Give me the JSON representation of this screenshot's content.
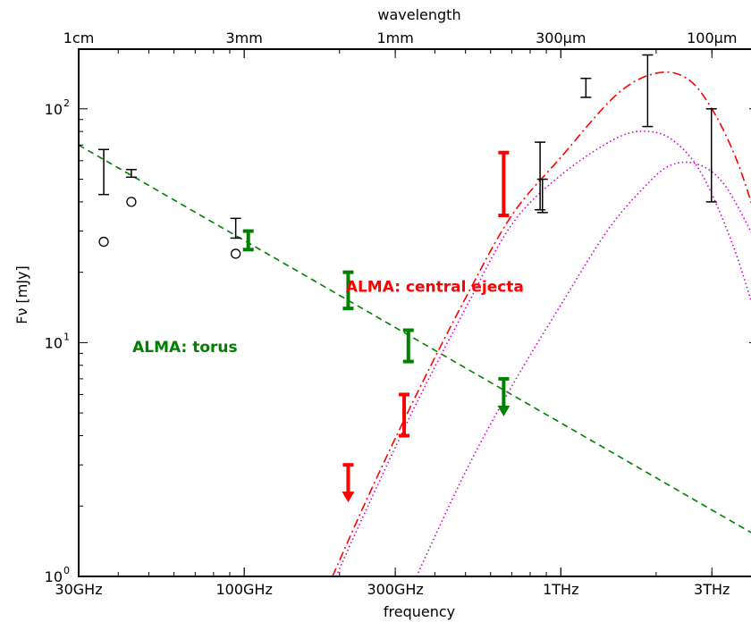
{
  "chart_data": {
    "type": "scatter",
    "xscale": "log",
    "yscale": "log",
    "xlim_GHz": [
      30,
      4200
    ],
    "ylim_mJy": [
      1,
      180
    ],
    "xlabel": "frequency",
    "ylabel": "Fν [mJy]",
    "top_axis_label": "wavelength",
    "x_ticks": [
      {
        "value": 30,
        "label": "30GHz"
      },
      {
        "value": 100,
        "label": "100GHz"
      },
      {
        "value": 300,
        "label": "300GHz"
      },
      {
        "value": 1000,
        "label": "1THz"
      },
      {
        "value": 3000,
        "label": "3THz"
      }
    ],
    "top_ticks": [
      {
        "value": 30,
        "label": "1cm"
      },
      {
        "value": 100,
        "label": "3mm"
      },
      {
        "value": 300,
        "label": "1mm"
      },
      {
        "value": 1000,
        "label": "300μm"
      },
      {
        "value": 3000,
        "label": "100μm"
      }
    ],
    "y_ticks": [
      {
        "value": 1,
        "base": "10",
        "exp": "0"
      },
      {
        "value": 10,
        "base": "10",
        "exp": "1"
      },
      {
        "value": 100,
        "base": "10",
        "exp": "2"
      }
    ],
    "annotations": [
      {
        "text": "ALMA: central ejecta",
        "x": 400,
        "y": 16.5,
        "color": "#ff0000"
      },
      {
        "text": "ALMA: torus",
        "x": 65,
        "y": 9.1,
        "color": "#008000"
      }
    ],
    "black_errorbars": [
      {
        "x": 36,
        "ylo": 43,
        "yhi": 67
      },
      {
        "x": 44,
        "ylo": 51,
        "yhi": 55
      },
      {
        "x": 94,
        "ylo": 28,
        "yhi": 34
      },
      {
        "x": 860,
        "ylo": 37,
        "yhi": 72
      },
      {
        "x": 875,
        "ylo": 36,
        "yhi": 50
      },
      {
        "x": 1200,
        "ylo": 112,
        "yhi": 135
      },
      {
        "x": 1880,
        "ylo": 84,
        "yhi": 170
      },
      {
        "x": 2990,
        "ylo": 40,
        "yhi": 100
      }
    ],
    "open_circles": [
      {
        "x": 36,
        "y": 27
      },
      {
        "x": 44,
        "y": 40
      },
      {
        "x": 94,
        "y": 24
      }
    ],
    "green_errorbars": [
      {
        "x": 103,
        "ylo": 25,
        "yhi": 30
      },
      {
        "x": 213,
        "ylo": 14,
        "yhi": 20
      },
      {
        "x": 330,
        "ylo": 8.3,
        "yhi": 11.3
      }
    ],
    "green_upper_limits": [
      {
        "x": 660,
        "y": 7.0
      }
    ],
    "red_errorbars": [
      {
        "x": 660,
        "ylo": 35,
        "yhi": 65
      },
      {
        "x": 320,
        "ylo": 4.0,
        "yhi": 6.0
      }
    ],
    "red_upper_limits": [
      {
        "x": 213,
        "y": 3.0
      }
    ],
    "series": [
      {
        "style": "green-dashed-powerlaw",
        "color": "#008000",
        "x": [
          30,
          4200
        ],
        "y": [
          70,
          1.48
        ]
      },
      {
        "style": "red-dashdot-total",
        "color": "#ff0000",
        "x": [
          190,
          250,
          350,
          500,
          700,
          1000,
          1500,
          2000,
          2500,
          3000,
          3600,
          4200
        ],
        "y": [
          1.0,
          2.3,
          6.0,
          15.5,
          35,
          62,
          115,
          142,
          135,
          100,
          60,
          32
        ]
      },
      {
        "style": "magenta-dotted-component-1",
        "color": "#cc00cc",
        "x": [
          195,
          250,
          350,
          500,
          700,
          1000,
          1500,
          1900,
          2300,
          2800,
          3500,
          4200
        ],
        "y": [
          1.0,
          2.1,
          5.5,
          14.0,
          32,
          52,
          75,
          80,
          72,
          52,
          26,
          12
        ]
      },
      {
        "style": "magenta-dotted-component-2",
        "color": "#cc00cc",
        "x": [
          350,
          500,
          700,
          1000,
          1400,
          1800,
          2200,
          2700,
          3300,
          4200
        ],
        "y": [
          1.0,
          2.8,
          6.5,
          14.5,
          30,
          45,
          57,
          58,
          47,
          26
        ]
      }
    ],
    "grid": false,
    "legend": "none"
  }
}
